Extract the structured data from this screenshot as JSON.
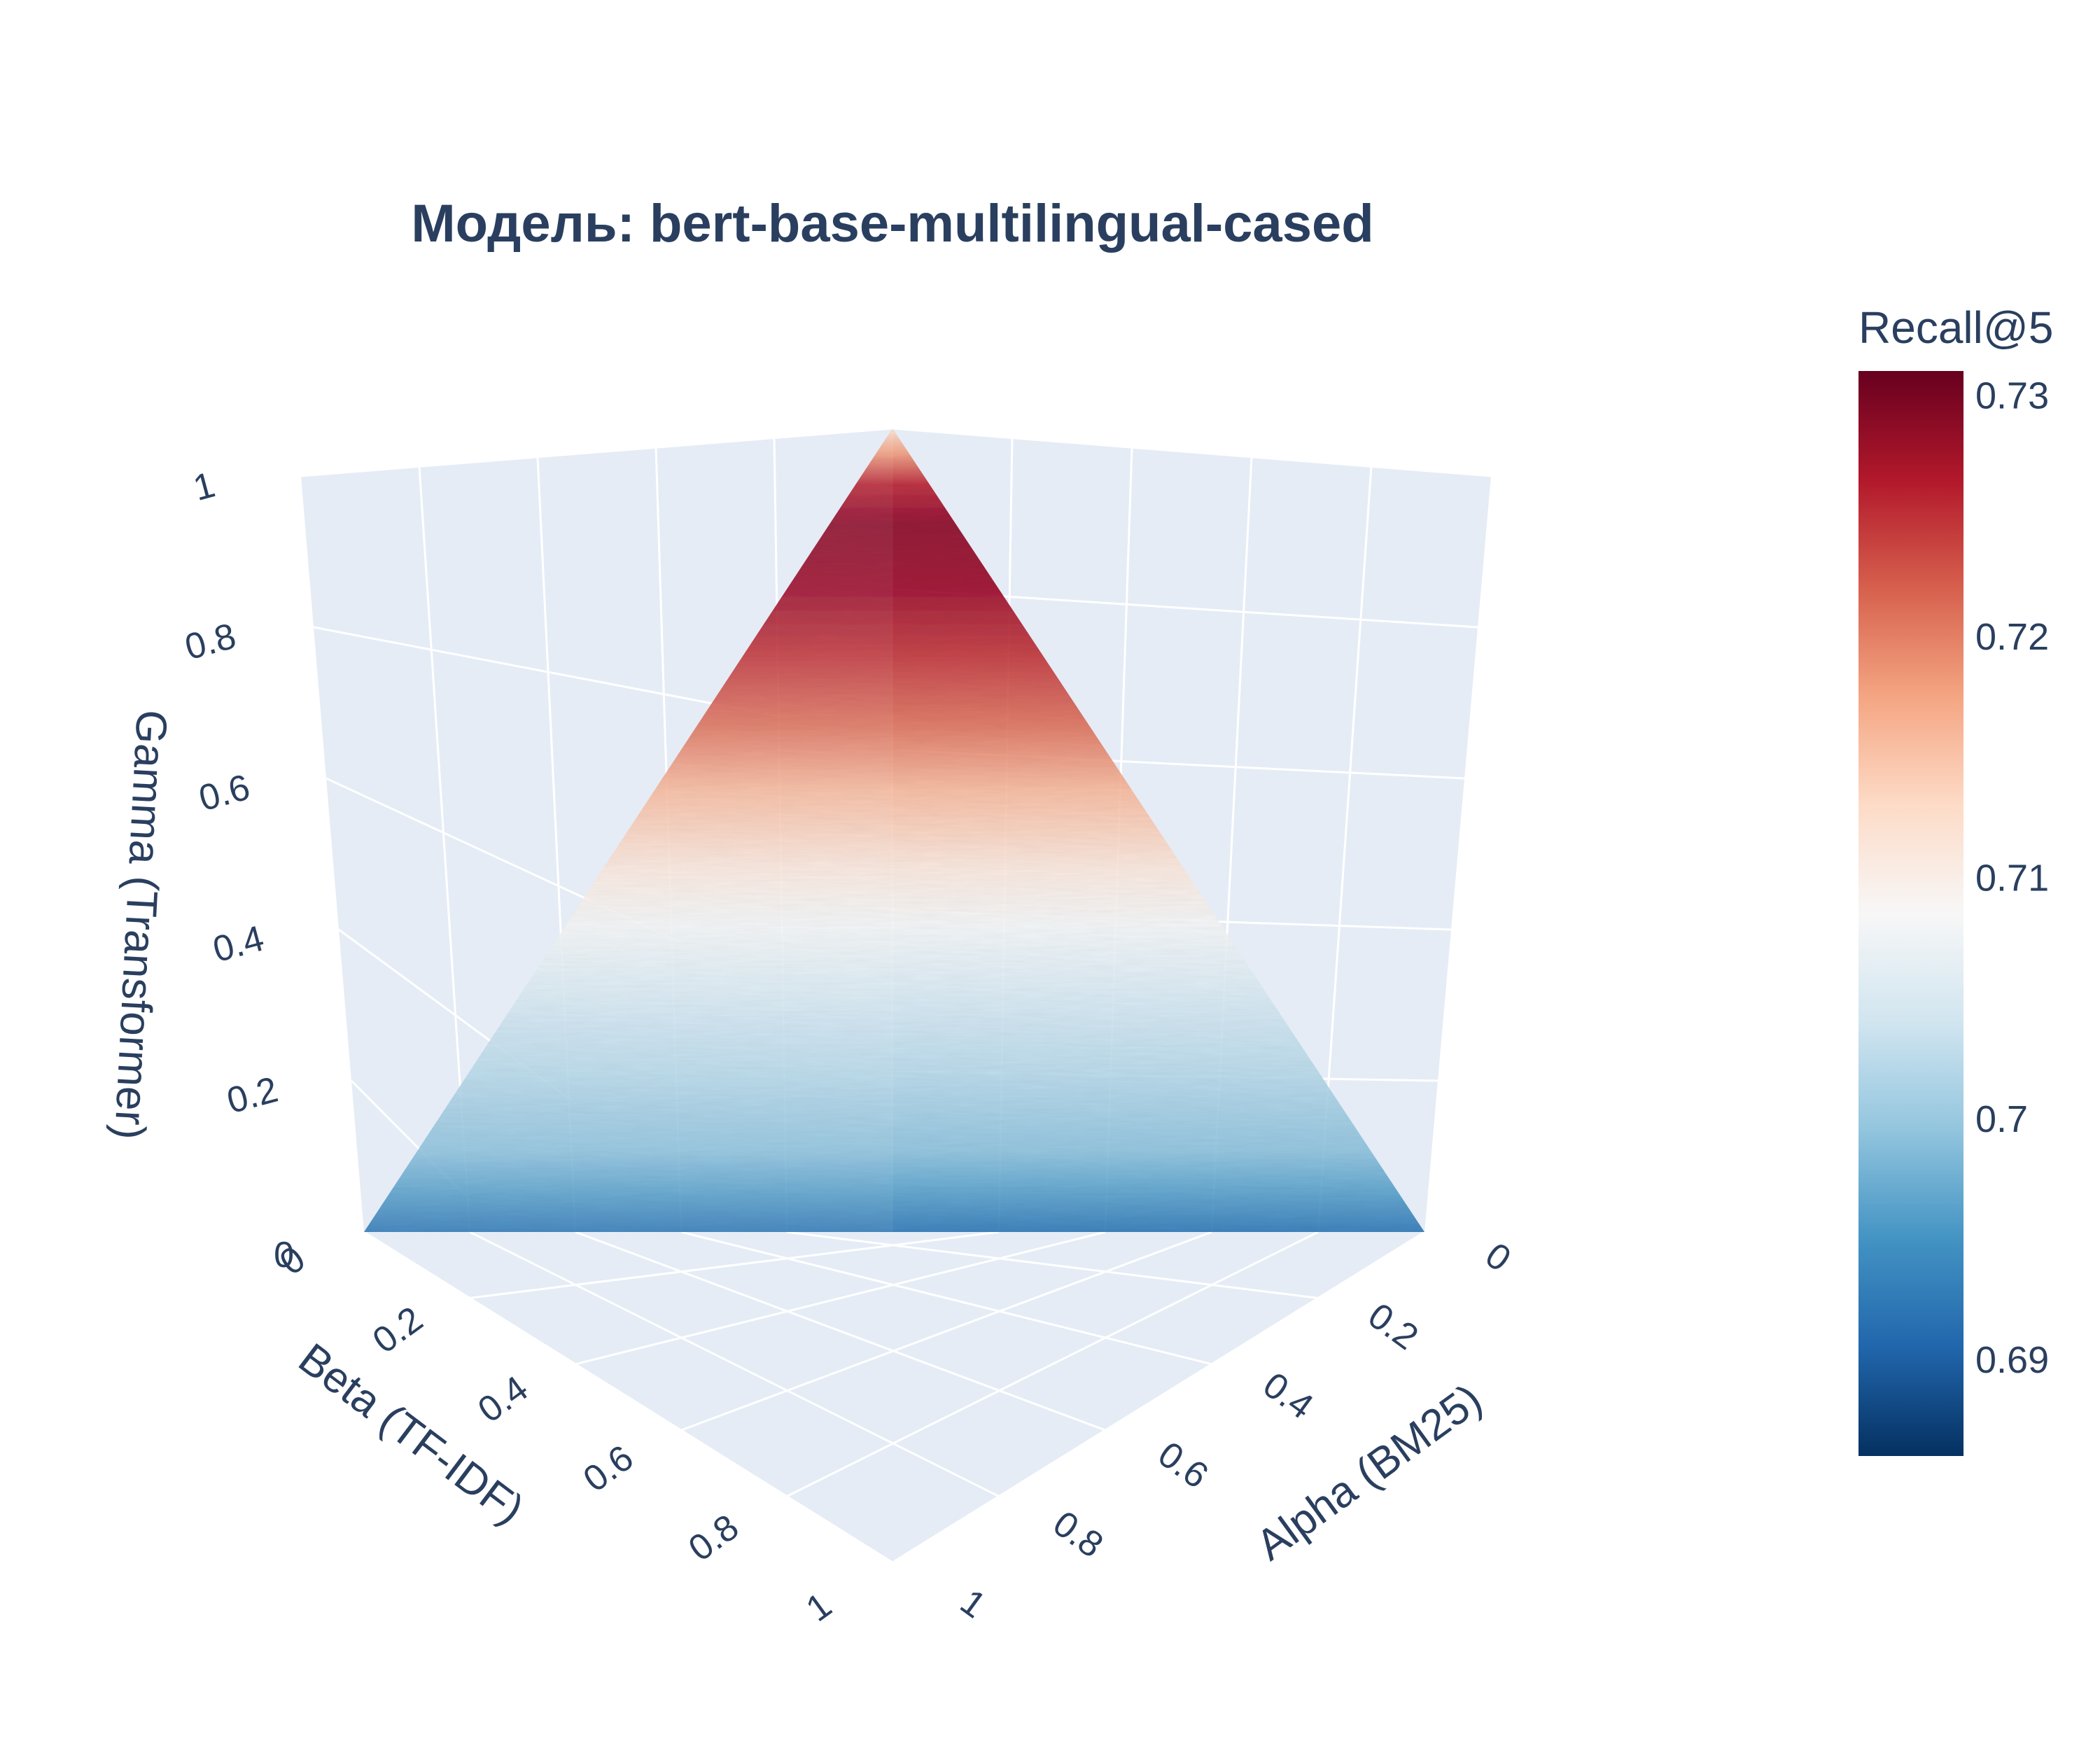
{
  "title": "Модель: bert-base-multilingual-cased",
  "chart_data": {
    "type": "surface3d-ternary",
    "title": "Модель: bert-base-multilingual-cased",
    "x_axis": {
      "label": "Alpha (BM25)",
      "ticks": [
        "0",
        "0.2",
        "0.4",
        "0.6",
        "0.8",
        "1"
      ],
      "range": [
        0,
        1
      ]
    },
    "y_axis": {
      "label": "Beta (TF-IDF)",
      "ticks": [
        "0",
        "0.2",
        "0.4",
        "0.6",
        "0.8",
        "1"
      ],
      "range": [
        0,
        1
      ]
    },
    "z_axis": {
      "label": "Gamma (Transformer)",
      "ticks": [
        "0",
        "0.2",
        "0.4",
        "0.6",
        "0.8",
        "1"
      ],
      "range": [
        0,
        1
      ]
    },
    "surface_constraint": "alpha + beta + gamma = 1",
    "color_metric": "Recall@5",
    "colorscale": "RdBu (reversed)",
    "color_range": [
      0.686,
      0.731
    ],
    "recall_by_gamma": [
      {
        "gamma": 0.0,
        "recall": 0.692
      },
      {
        "gamma": 0.05,
        "recall": 0.696
      },
      {
        "gamma": 0.1,
        "recall": 0.699
      },
      {
        "gamma": 0.2,
        "recall": 0.702
      },
      {
        "gamma": 0.3,
        "recall": 0.705
      },
      {
        "gamma": 0.38,
        "recall": 0.708
      },
      {
        "gamma": 0.45,
        "recall": 0.711
      },
      {
        "gamma": 0.55,
        "recall": 0.716
      },
      {
        "gamma": 0.63,
        "recall": 0.721
      },
      {
        "gamma": 0.72,
        "recall": 0.725
      },
      {
        "gamma": 0.8,
        "recall": 0.728
      },
      {
        "gamma": 0.88,
        "recall": 0.729
      },
      {
        "gamma": 0.93,
        "recall": 0.726
      },
      {
        "gamma": 0.97,
        "recall": 0.718
      },
      {
        "gamma": 1.0,
        "recall": 0.712
      }
    ],
    "colorbar": {
      "title": "Recall@5",
      "ticks": [
        "0.73",
        "0.72",
        "0.71",
        "0.7",
        "0.69"
      ],
      "tick_values": [
        0.73,
        0.72,
        0.71,
        0.7,
        0.69
      ]
    },
    "colors": {
      "scene_bg": "#e5ecf6",
      "grid": "#ffffff",
      "text": "#2a3f5f"
    }
  }
}
